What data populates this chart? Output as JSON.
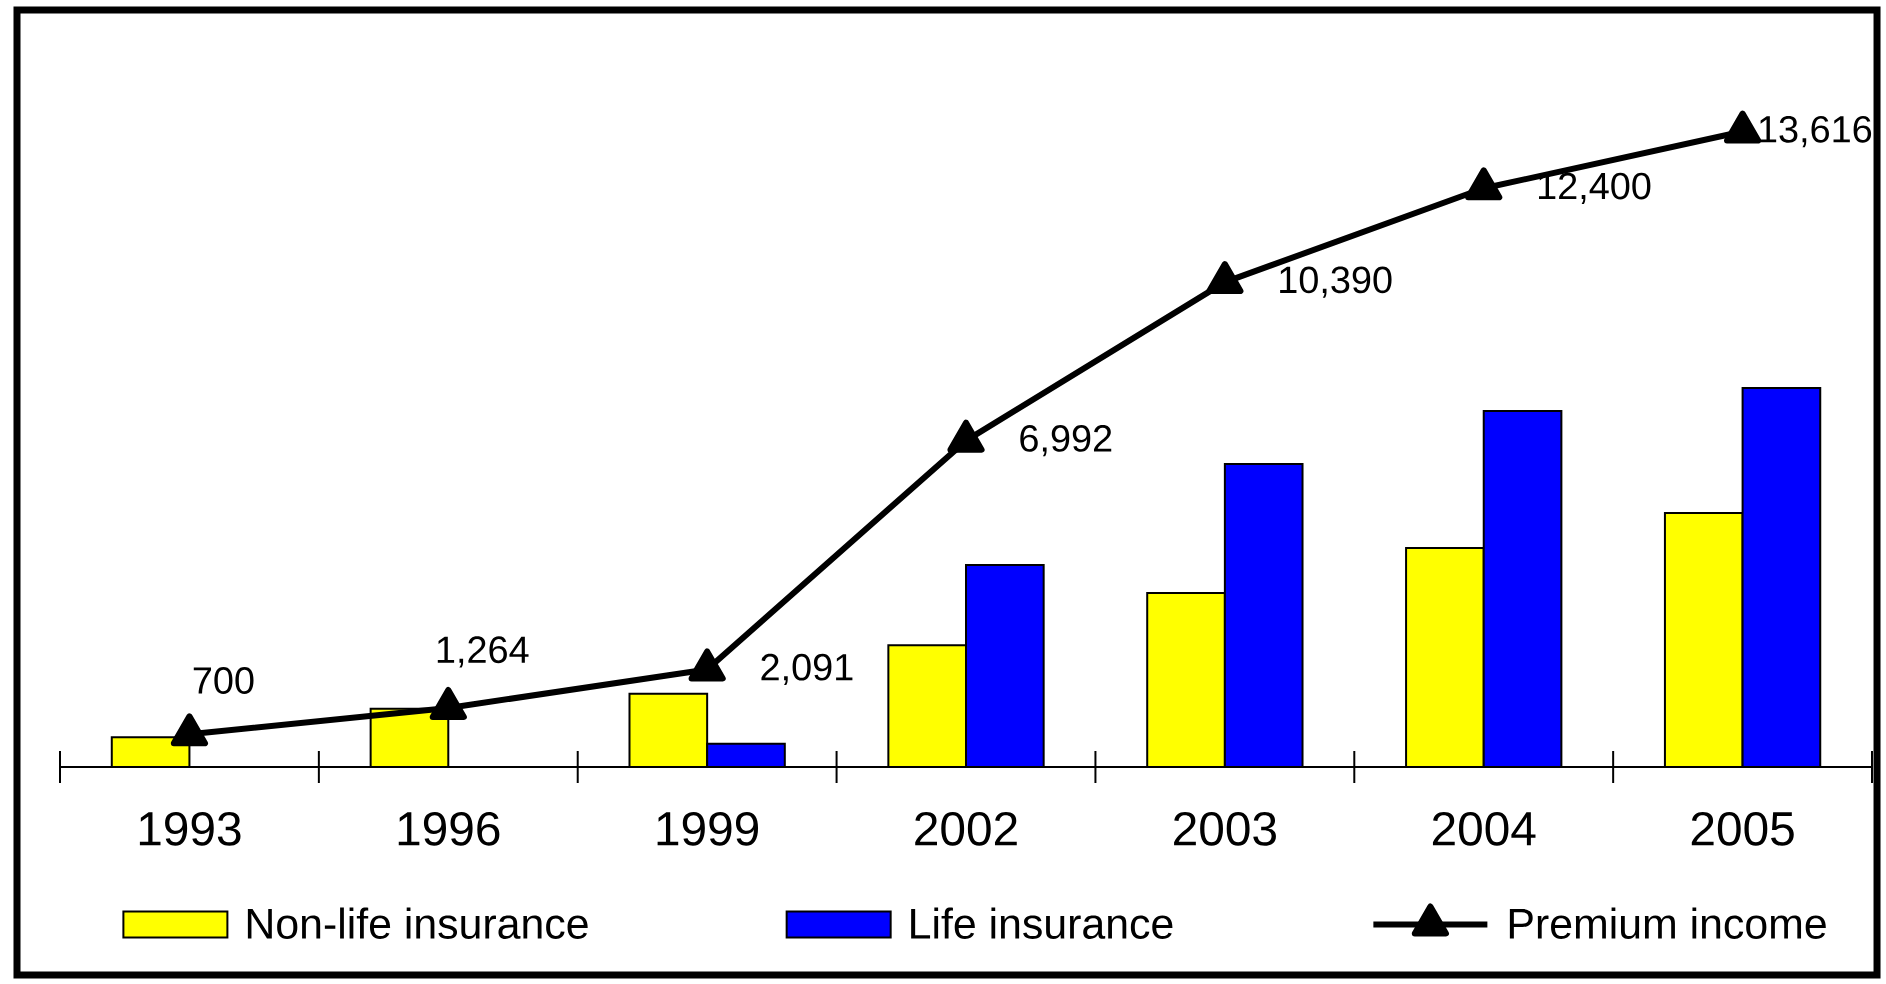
{
  "chart_data": {
    "type": "bar",
    "categories": [
      "1993",
      "1996",
      "1999",
      "2002",
      "2003",
      "2004",
      "2005"
    ],
    "series": [
      {
        "name": "Non-life insurance",
        "color": "#ffff00",
        "values": [
          640,
          1250,
          1570,
          2610,
          3730,
          4690,
          5440
        ]
      },
      {
        "name": "Life insurance",
        "color": "#0000ff",
        "values": [
          null,
          null,
          500,
          4330,
          6490,
          7630,
          8120
        ]
      },
      {
        "name": "Premium income",
        "type": "line",
        "color": "#000000",
        "values": [
          700,
          1264,
          2091,
          6992,
          10390,
          12400,
          13616
        ],
        "value_labels": [
          "700",
          "1,264",
          "2,091",
          "6,992",
          "10,390",
          "12,400",
          "13,616"
        ]
      }
    ],
    "tick_labels": "x",
    "legend": "bottom",
    "marker": "triangle"
  }
}
